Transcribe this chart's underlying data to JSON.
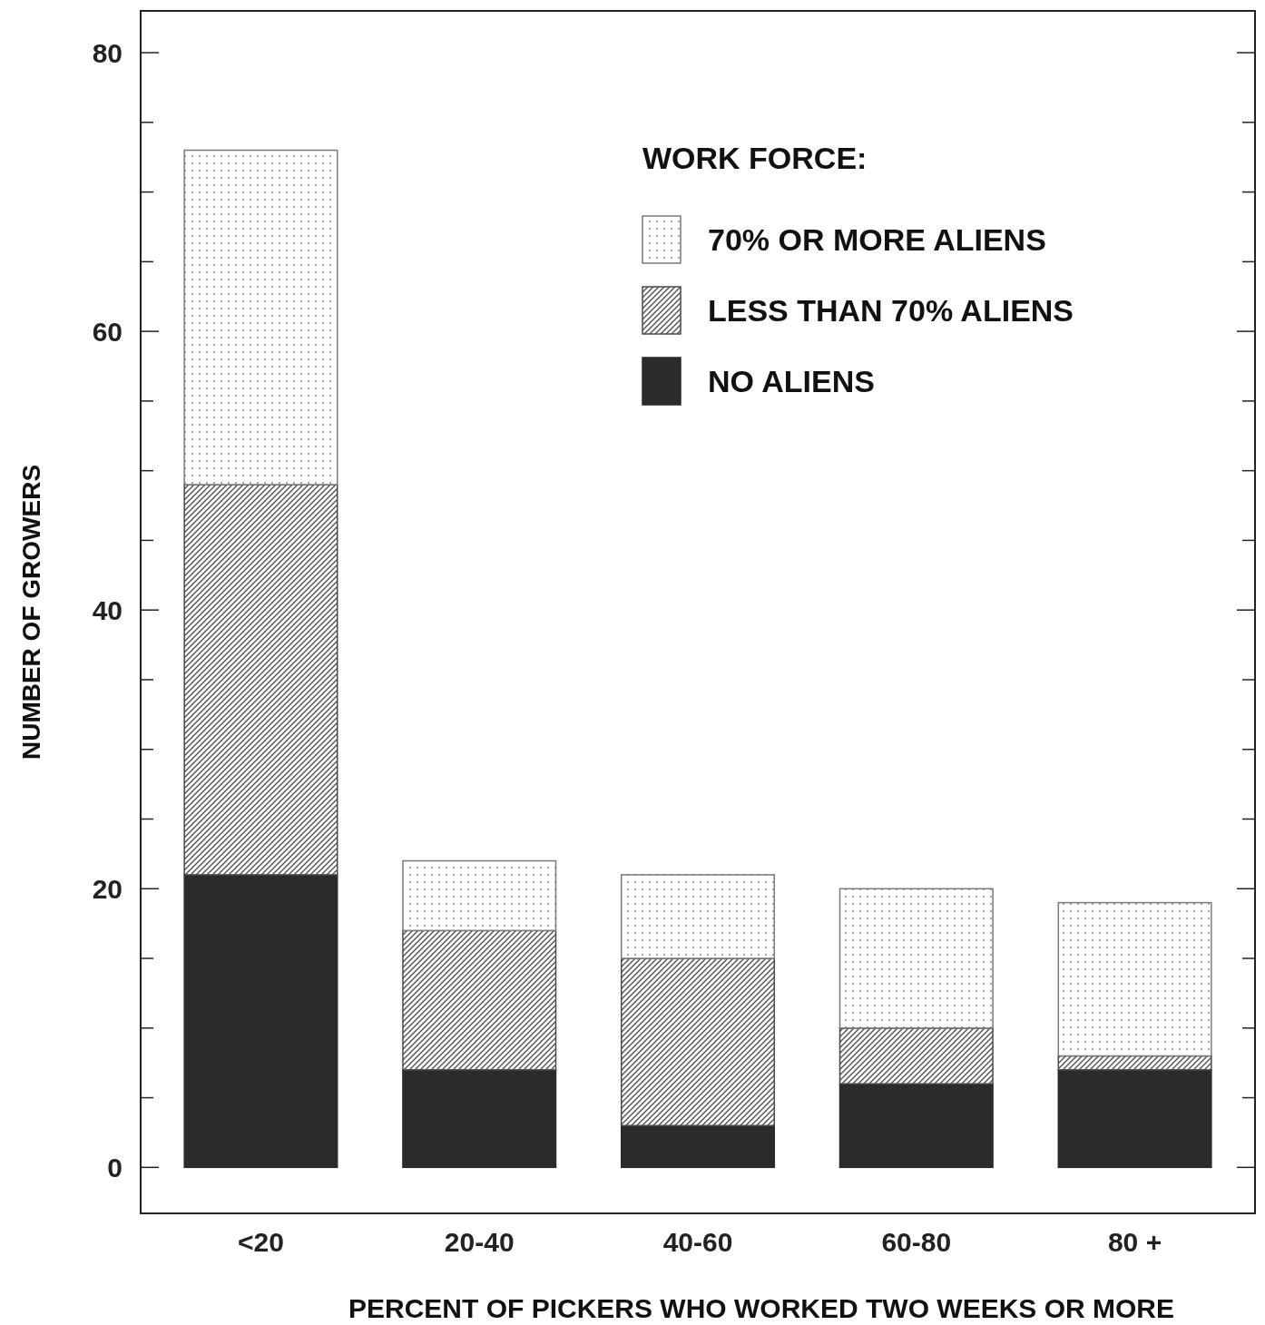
{
  "chart_data": {
    "type": "bar",
    "stacked": true,
    "xlabel": "PERCENT OF PICKERS WHO WORKED TWO WEEKS OR MORE",
    "ylabel": "NUMBER OF GROWERS",
    "legend_title": "WORK FORCE:",
    "legend": "top right",
    "categories": [
      "<20",
      "20-40",
      "40-60",
      "60-80",
      "80 +"
    ],
    "series": [
      {
        "name": "NO ALIENS",
        "color": "#2b2b2b",
        "values": [
          21,
          7,
          3,
          6,
          7
        ]
      },
      {
        "name": "LESS THAN 70% ALIENS",
        "color": "#4a4a4a",
        "values": [
          28,
          10,
          12,
          4,
          1
        ]
      },
      {
        "name": "70% OR MORE ALIENS",
        "color": "#7a7a7a",
        "values": [
          24,
          5,
          6,
          10,
          11
        ]
      }
    ],
    "ylim": [
      -3.3,
      83
    ],
    "yticks": [
      0,
      {
        "value": 5,
        "label": null
      },
      {
        "value": 10,
        "label": null
      },
      {
        "value": 15,
        "label": null
      },
      20,
      {
        "value": 25,
        "label": null
      },
      {
        "value": 30,
        "label": null
      },
      {
        "value": 35,
        "label": null
      },
      40,
      {
        "value": 45,
        "label": null
      },
      {
        "value": 50,
        "label": null
      },
      {
        "value": 55,
        "label": null
      },
      60,
      {
        "value": 65,
        "label": null
      },
      {
        "value": 70,
        "label": null
      },
      {
        "value": 75,
        "label": null
      },
      80
    ]
  }
}
